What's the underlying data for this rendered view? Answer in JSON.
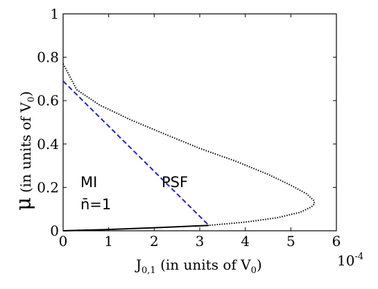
{
  "chart_data": {
    "type": "line",
    "xlabel": "J",
    "xlabel_sub": "0,1",
    "xlabel_rest": " (in units of V",
    "xlabel_unit_sub": "0",
    "xlabel_close": ")",
    "ylabel_mu": "μ",
    "ylabel_rest": " (in units of V",
    "ylabel_unit_sub": "0",
    "ylabel_close": ")",
    "x_exponent": "10",
    "x_exponent_power": "-4",
    "xlim": [
      0,
      6
    ],
    "ylim": [
      0,
      1
    ],
    "xticks": [
      "0",
      "1",
      "2",
      "3",
      "4",
      "5",
      "6"
    ],
    "yticks": [
      "0",
      "0.2",
      "0.4",
      "0.6",
      "0.8",
      "1"
    ],
    "annotations": {
      "mi": "MI",
      "nbar": "n̄=1",
      "psf": "PSF"
    },
    "grid": false,
    "series": [
      {
        "style": "dotted",
        "color": "#000000",
        "x": [
          0,
          0.3,
          0.8,
          1.5,
          2.3,
          3.0,
          3.8,
          4.5,
          5.0,
          5.35,
          5.5,
          5.52,
          5.45,
          5.2,
          4.7,
          4.0,
          3.2
        ],
        "y": [
          0.77,
          0.65,
          0.58,
          0.51,
          0.44,
          0.38,
          0.32,
          0.26,
          0.21,
          0.17,
          0.14,
          0.125,
          0.11,
          0.085,
          0.06,
          0.04,
          0.025
        ]
      },
      {
        "style": "dashed",
        "color": "#1f1fd6",
        "x": [
          0,
          3.2
        ],
        "y": [
          0.69,
          0.025
        ]
      },
      {
        "style": "solid",
        "color": "#000000",
        "x": [
          0,
          1.0,
          2.0,
          3.2
        ],
        "y": [
          0,
          0.006,
          0.014,
          0.025
        ]
      }
    ]
  }
}
